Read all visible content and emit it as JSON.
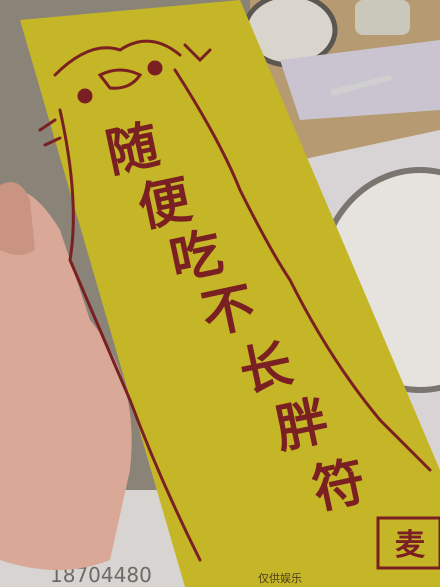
{
  "talisman": {
    "characters": [
      "随",
      "便",
      "吃",
      "不",
      "长",
      "胖",
      "符"
    ],
    "footnote": "仅供娱乐",
    "logo": "麦"
  },
  "table": {
    "phone": "18704480"
  }
}
